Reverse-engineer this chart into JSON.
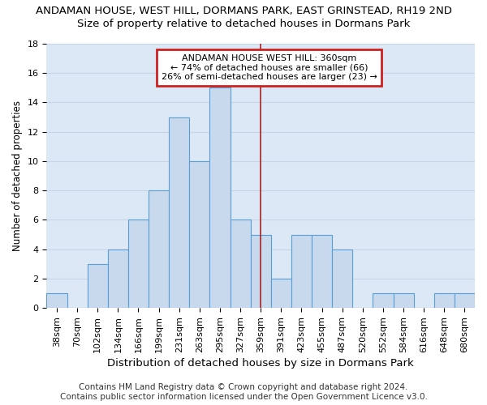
{
  "title": "ANDAMAN HOUSE, WEST HILL, DORMANS PARK, EAST GRINSTEAD, RH19 2ND",
  "subtitle": "Size of property relative to detached houses in Dormans Park",
  "xlabel": "Distribution of detached houses by size in Dormans Park",
  "ylabel": "Number of detached properties",
  "footer_line1": "Contains HM Land Registry data © Crown copyright and database right 2024.",
  "footer_line2": "Contains public sector information licensed under the Open Government Licence v3.0.",
  "bin_labels": [
    "38sqm",
    "70sqm",
    "102sqm",
    "134sqm",
    "166sqm",
    "199sqm",
    "231sqm",
    "263sqm",
    "295sqm",
    "327sqm",
    "359sqm",
    "391sqm",
    "423sqm",
    "455sqm",
    "487sqm",
    "520sqm",
    "552sqm",
    "584sqm",
    "616sqm",
    "648sqm",
    "680sqm"
  ],
  "bar_heights": [
    1,
    0,
    3,
    4,
    6,
    8,
    13,
    10,
    15,
    6,
    5,
    2,
    5,
    5,
    4,
    0,
    1,
    1,
    0,
    1,
    1
  ],
  "bar_color": "#c8d9ee",
  "bar_edge_color": "#5a9fd4",
  "property_line_x": 10.0,
  "property_line_color": "#aa2222",
  "annotation_text": "ANDAMAN HOUSE WEST HILL: 360sqm\n← 74% of detached houses are smaller (66)\n26% of semi-detached houses are larger (23) →",
  "annotation_box_color": "#ffffff",
  "annotation_box_edge_color": "#cc2222",
  "ylim": [
    0,
    18
  ],
  "yticks": [
    0,
    2,
    4,
    6,
    8,
    10,
    12,
    14,
    16,
    18
  ],
  "grid_color": "#c8d4e8",
  "background_color": "#dce8f5",
  "title_fontsize": 9.5,
  "subtitle_fontsize": 9.5,
  "xlabel_fontsize": 9.5,
  "ylabel_fontsize": 8.5,
  "tick_fontsize": 8,
  "annotation_fontsize": 8,
  "footer_fontsize": 7.5
}
